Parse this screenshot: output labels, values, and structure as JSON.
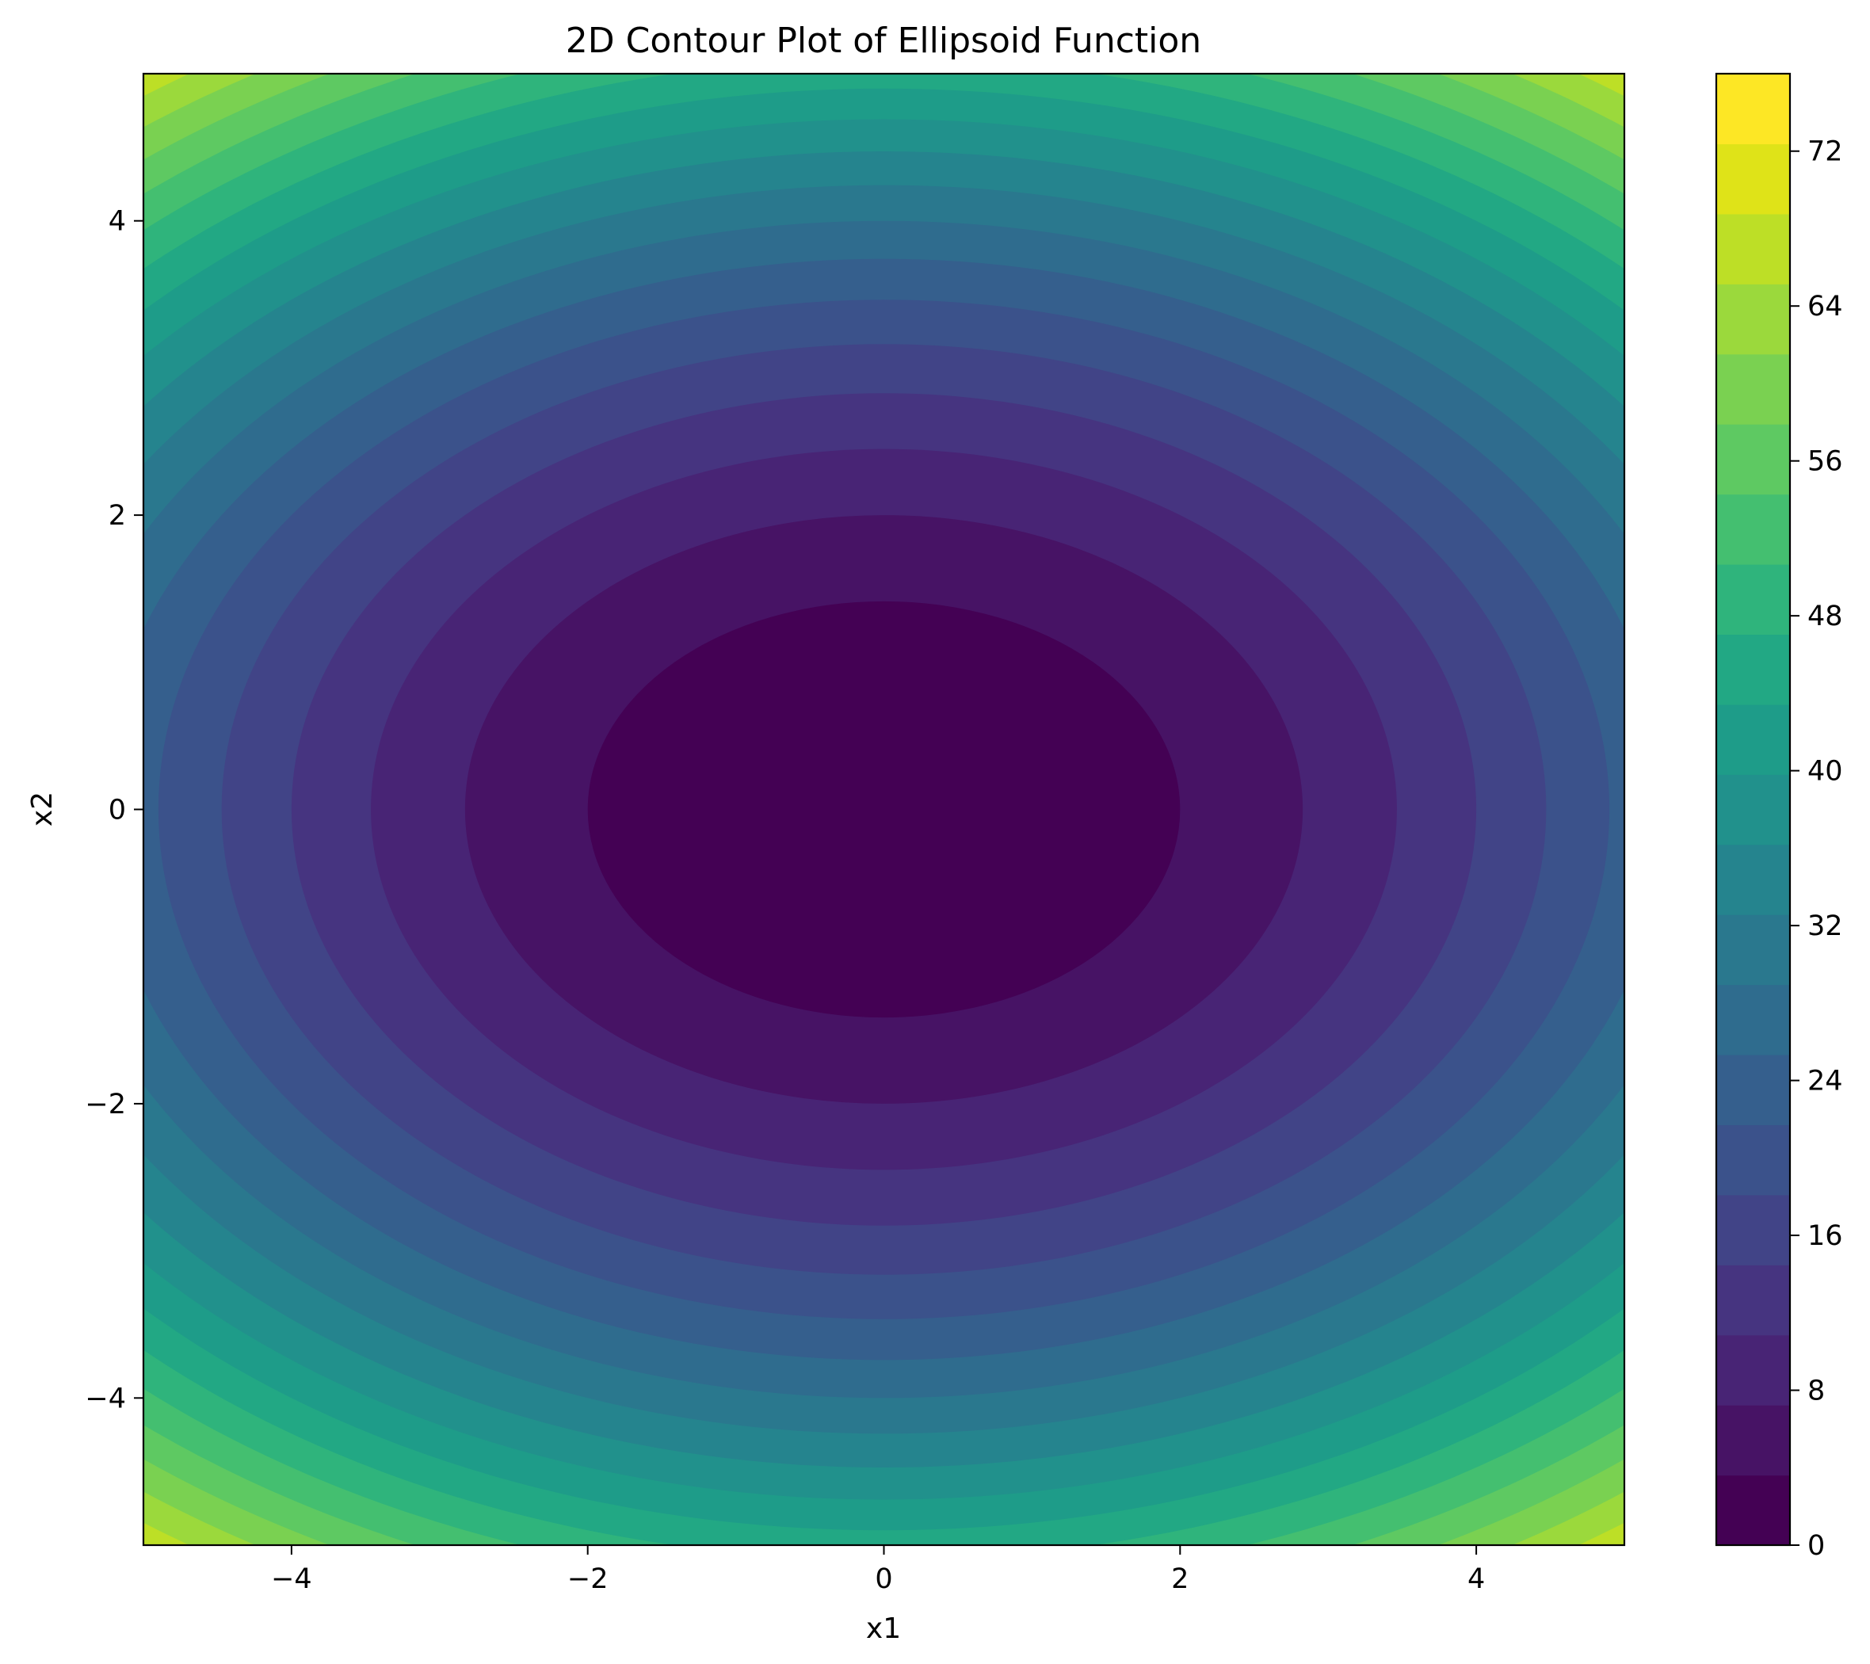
{
  "chart_data": {
    "type": "contour",
    "title": "2D Contour Plot of Ellipsoid Function",
    "xlabel": "x1",
    "ylabel": "x2",
    "xlim": [
      -5,
      5
    ],
    "ylim": [
      -5,
      5
    ],
    "function": "x1^2 + 2*x2^2",
    "x_ticks": [
      -4,
      -2,
      0,
      2,
      4
    ],
    "x_tick_labels": [
      "−4",
      "−2",
      "0",
      "2",
      "4"
    ],
    "y_ticks": [
      -4,
      -2,
      0,
      2,
      4
    ],
    "y_tick_labels": [
      "−4",
      "−2",
      "0",
      "2",
      "4"
    ],
    "levels": [
      0,
      4,
      8,
      12,
      16,
      20,
      24,
      28,
      32,
      36,
      40,
      44,
      48,
      52,
      56,
      60,
      64,
      68,
      72,
      76
    ],
    "colors": [
      "#440154",
      "#471365",
      "#482475",
      "#463480",
      "#414487",
      "#3b528b",
      "#355f8d",
      "#2f6c8e",
      "#2a788e",
      "#25848e",
      "#21918c",
      "#1e9c89",
      "#22a884",
      "#2fb47c",
      "#44bf70",
      "#5ec962",
      "#7ad151",
      "#9bd93c",
      "#bddf26",
      "#dfe318",
      "#fde725"
    ],
    "colorbar": {
      "ticks": [
        0,
        8,
        16,
        24,
        32,
        40,
        48,
        56,
        64,
        72
      ],
      "tick_labels": [
        "0",
        "8",
        "16",
        "24",
        "32",
        "40",
        "48",
        "56",
        "64",
        "72"
      ],
      "range": [
        0,
        76
      ]
    },
    "grid": false,
    "legend": "none"
  }
}
